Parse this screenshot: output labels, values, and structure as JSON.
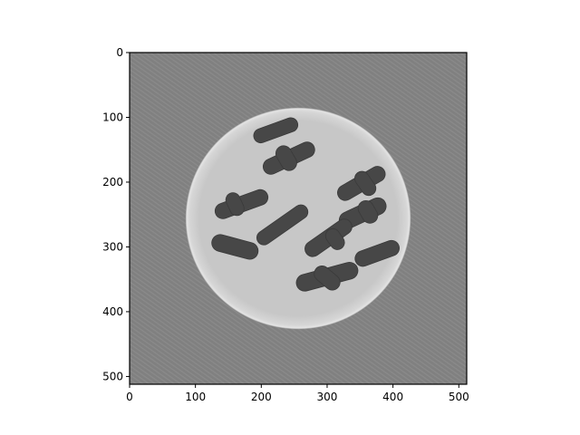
{
  "chart_data": {
    "type": "heatmap",
    "title": "",
    "xlabel": "",
    "ylabel": "",
    "colormap": "gray",
    "image_size": [
      512,
      512
    ],
    "xlim": [
      0,
      512
    ],
    "ylim": [
      512,
      0
    ],
    "x_ticks": [
      0,
      100,
      200,
      300,
      400,
      500
    ],
    "y_ticks": [
      0,
      100,
      200,
      300,
      400,
      500
    ],
    "x_tick_labels": [
      "0",
      "100",
      "200",
      "300",
      "400",
      "500"
    ],
    "y_tick_labels": [
      "0",
      "100",
      "200",
      "300",
      "400",
      "500"
    ],
    "disk": {
      "center": [
        256,
        256
      ],
      "radius": 171,
      "gray": 0.78,
      "rim_gray": 0.9
    },
    "background_gray": 0.5,
    "cavity_gray": 0.28,
    "cavities": [
      {
        "cx": 222,
        "cy": 120,
        "len": 70,
        "width": 22,
        "angle": -20
      },
      {
        "cx": 242,
        "cy": 163,
        "len": 84,
        "width": 24,
        "angle": -25
      },
      {
        "cx": 238,
        "cy": 163,
        "len": 40,
        "width": 24,
        "angle": 60
      },
      {
        "cx": 352,
        "cy": 202,
        "len": 80,
        "width": 24,
        "angle": -30
      },
      {
        "cx": 358,
        "cy": 202,
        "len": 40,
        "width": 22,
        "angle": 55
      },
      {
        "cx": 170,
        "cy": 234,
        "len": 84,
        "width": 24,
        "angle": -20
      },
      {
        "cx": 160,
        "cy": 234,
        "len": 36,
        "width": 22,
        "angle": 65
      },
      {
        "cx": 354,
        "cy": 248,
        "len": 76,
        "width": 26,
        "angle": -25
      },
      {
        "cx": 362,
        "cy": 246,
        "len": 36,
        "width": 24,
        "angle": 60
      },
      {
        "cx": 232,
        "cy": 266,
        "len": 90,
        "width": 22,
        "angle": -35
      },
      {
        "cx": 160,
        "cy": 300,
        "len": 72,
        "width": 26,
        "angle": 15
      },
      {
        "cx": 302,
        "cy": 286,
        "len": 82,
        "width": 24,
        "angle": -35
      },
      {
        "cx": 312,
        "cy": 288,
        "len": 34,
        "width": 22,
        "angle": 55
      },
      {
        "cx": 376,
        "cy": 310,
        "len": 70,
        "width": 24,
        "angle": -20
      },
      {
        "cx": 300,
        "cy": 346,
        "len": 96,
        "width": 26,
        "angle": -15
      },
      {
        "cx": 300,
        "cy": 348,
        "len": 44,
        "width": 24,
        "angle": 40
      }
    ]
  }
}
